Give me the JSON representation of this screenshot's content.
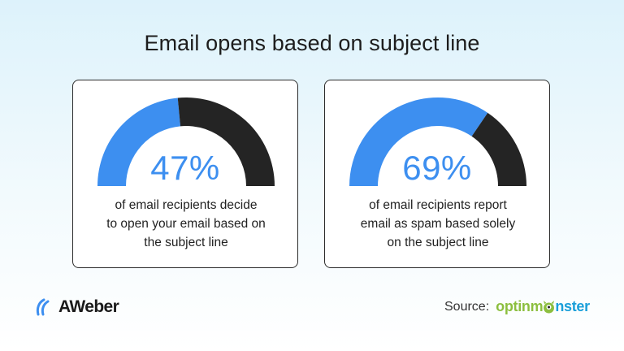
{
  "title": "Email opens based on subject line",
  "colors": {
    "accent": "#3d8ff0",
    "dark": "#242424",
    "om_green": "#8cbf3f",
    "om_blue": "#1a9fd9"
  },
  "chart_data": [
    {
      "type": "gauge",
      "values": [
        47,
        53
      ],
      "value_label": "47%",
      "caption": "of email recipients decide to open your email based on the subject line"
    },
    {
      "type": "gauge",
      "values": [
        69,
        31
      ],
      "value_label": "69%",
      "caption": "of email recipients report email as spam based solely on the subject line"
    }
  ],
  "captions": {
    "left": [
      "of email recipients decide",
      "to open your email based on",
      "the subject line"
    ],
    "right": [
      "of email recipients report",
      "email as spam based solely",
      "on the subject line"
    ]
  },
  "footer": {
    "brand": "AWeber",
    "brand_icon": "aweber-wave-icon",
    "source_label": "Source:",
    "source_logo_a": "optinm",
    "source_logo_b": "nster",
    "source_logo_icon": "monster-icon"
  }
}
